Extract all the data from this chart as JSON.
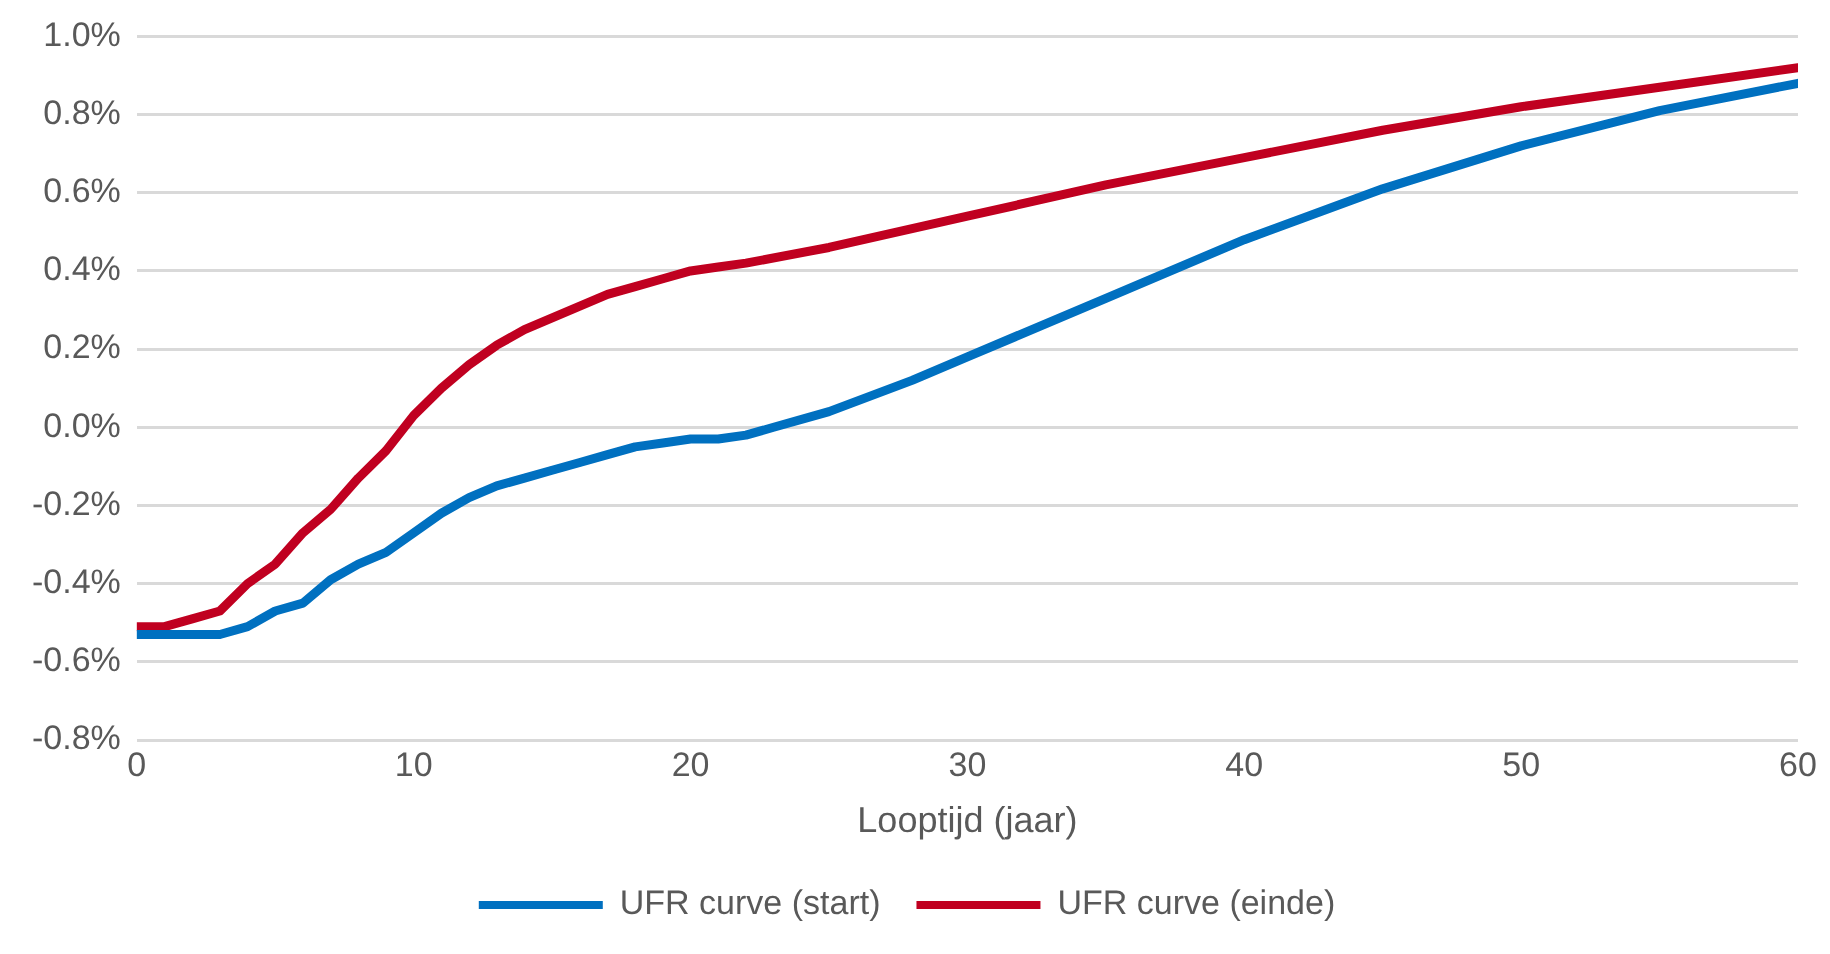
{
  "chart_data": {
    "type": "line",
    "xlabel": "Looptijd (jaar)",
    "xlim": [
      0,
      60
    ],
    "xticks": [
      0,
      10,
      20,
      30,
      40,
      50,
      60
    ],
    "ylim": [
      -0.8,
      1.0
    ],
    "yticks": [
      {
        "value": -0.8,
        "label": "-0.8%"
      },
      {
        "value": -0.6,
        "label": "-0.6%"
      },
      {
        "value": -0.4,
        "label": "-0.4%"
      },
      {
        "value": -0.2,
        "label": "-0.2%"
      },
      {
        "value": 0,
        "label": "0.0%"
      },
      {
        "value": 0.2,
        "label": "0.2%"
      },
      {
        "value": 0.4,
        "label": "0.4%"
      },
      {
        "value": 0.6,
        "label": "0.6%"
      },
      {
        "value": 0.8,
        "label": "0.8%"
      },
      {
        "value": 1.0,
        "label": "1.0%"
      }
    ],
    "grid": "y",
    "legend": "bottom",
    "marker": "none",
    "line_style": "solid",
    "series": [
      {
        "name": "UFR curve (start)",
        "color": "#0070c0",
        "x": [
          0,
          1,
          2,
          3,
          4,
          5,
          6,
          7,
          8,
          9,
          10,
          11,
          12,
          13,
          14,
          15,
          16,
          17,
          18,
          19,
          20,
          21,
          22,
          23,
          25,
          28,
          30,
          35,
          40,
          45,
          50,
          55,
          60
        ],
        "values": [
          -0.53,
          -0.53,
          -0.53,
          -0.53,
          -0.51,
          -0.47,
          -0.45,
          -0.39,
          -0.35,
          -0.32,
          -0.27,
          -0.22,
          -0.18,
          -0.15,
          -0.13,
          -0.11,
          -0.09,
          -0.07,
          -0.05,
          -0.04,
          -0.03,
          -0.03,
          -0.02,
          0.0,
          0.04,
          0.12,
          0.18,
          0.33,
          0.48,
          0.61,
          0.72,
          0.81,
          0.88
        ]
      },
      {
        "name": "UFR curve (einde)",
        "color": "#c00020",
        "x": [
          0,
          1,
          2,
          3,
          4,
          5,
          6,
          7,
          8,
          9,
          10,
          11,
          12,
          13,
          14,
          15,
          16,
          17,
          18,
          19,
          20,
          21,
          22,
          25,
          30,
          35,
          40,
          45,
          50,
          55,
          60
        ],
        "values": [
          -0.51,
          -0.51,
          -0.49,
          -0.47,
          -0.4,
          -0.35,
          -0.27,
          -0.21,
          -0.13,
          -0.06,
          0.03,
          0.1,
          0.16,
          0.21,
          0.25,
          0.28,
          0.31,
          0.34,
          0.36,
          0.38,
          0.4,
          0.41,
          0.42,
          0.46,
          0.54,
          0.62,
          0.69,
          0.76,
          0.82,
          0.87,
          0.92
        ]
      }
    ]
  }
}
